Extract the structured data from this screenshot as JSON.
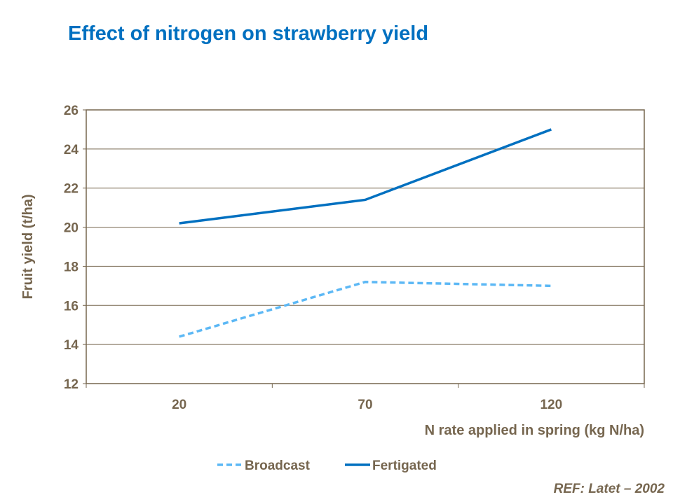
{
  "chart_data": {
    "type": "line",
    "title": "Effect of nitrogen on strawberry yield",
    "xlabel": "N rate applied in spring (kg N/ha)",
    "ylabel": "Fruit yield (t/ha)",
    "categories": [
      "20",
      "70",
      "120"
    ],
    "ylim": [
      12,
      26
    ],
    "yticks": [
      12,
      14,
      16,
      18,
      20,
      22,
      24,
      26
    ],
    "grid": true,
    "legend": "bottom",
    "series": [
      {
        "name": "Broadcast",
        "values": [
          14.4,
          17.2,
          17.0
        ],
        "color": "#5cb8f5",
        "style": "dashed"
      },
      {
        "name": "Fertigated",
        "values": [
          20.2,
          21.4,
          25.0
        ],
        "color": "#0070c0",
        "style": "solid"
      }
    ]
  },
  "reference": "REF:  Latet – 2002",
  "colors": {
    "title": "#0070c0",
    "text": "#76664f",
    "frame": "#76664f",
    "grid": "#76664f"
  }
}
